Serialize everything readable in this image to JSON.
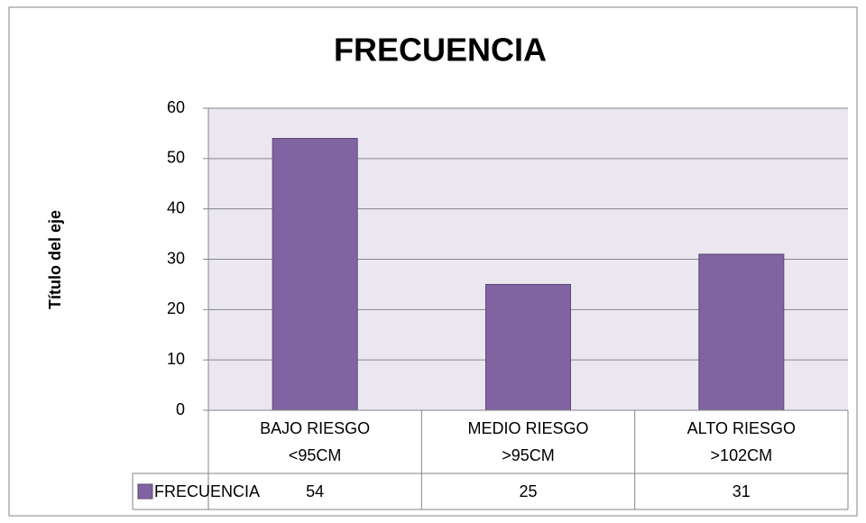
{
  "chart_data": {
    "type": "bar",
    "title": "FRECUENCIA",
    "y_label": "Título del eje",
    "categories": [
      "BAJO RIESGO <95CM",
      "MEDIO RIESGO >95CM",
      "ALTO RIESGO >102CM"
    ],
    "series": [
      {
        "name": "FRECUENCIA",
        "color": "#8064a2",
        "values": [
          54,
          25,
          31
        ]
      }
    ],
    "ylim": [
      0,
      60
    ],
    "yticks": [
      0,
      10,
      20,
      30,
      40,
      50,
      60
    ],
    "grid": true,
    "data_table": true
  }
}
